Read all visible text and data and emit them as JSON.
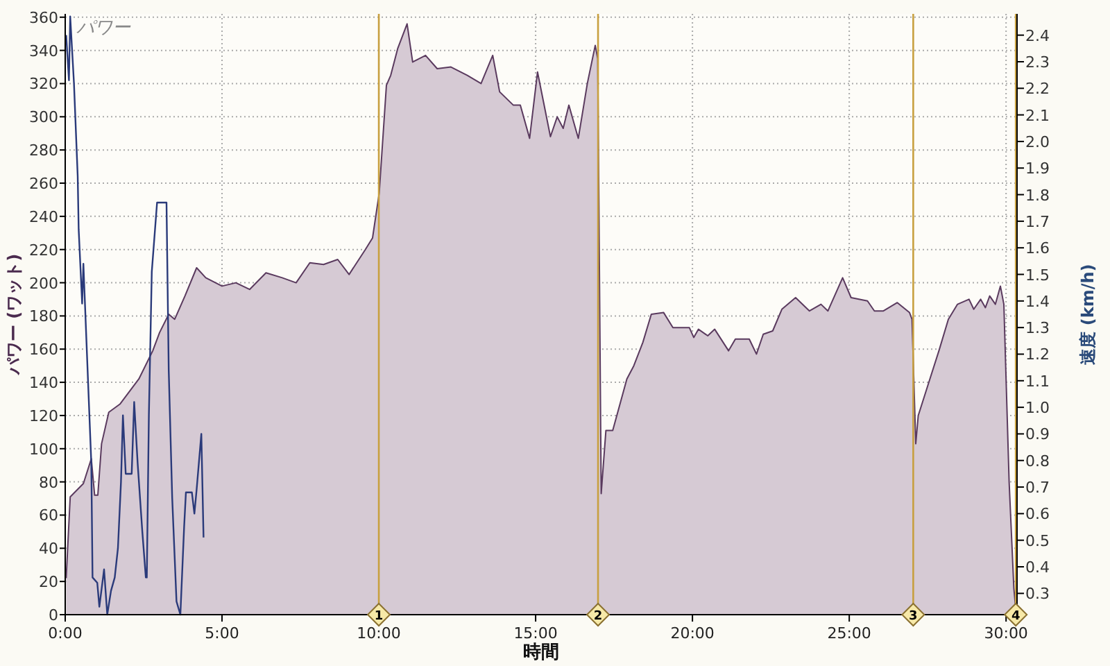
{
  "chart_data": {
    "type": "area",
    "title": "パワー",
    "xlabel": "時間",
    "ylabel": "パワー (ワット)",
    "y2label": "速度 (km/h)",
    "xlim": [
      0,
      30.35
    ],
    "xticks": [
      {
        "value": 0,
        "label": "0:00"
      },
      {
        "value": 5,
        "label": "5:00"
      },
      {
        "value": 10,
        "label": "10:00"
      },
      {
        "value": 15,
        "label": "15:00"
      },
      {
        "value": 20,
        "label": "20:00"
      },
      {
        "value": 25,
        "label": "25:00"
      },
      {
        "value": 30,
        "label": "30:00"
      }
    ],
    "ylim": [
      0,
      362
    ],
    "yticks": [
      0,
      20,
      40,
      60,
      80,
      100,
      120,
      140,
      160,
      180,
      200,
      220,
      240,
      260,
      280,
      300,
      320,
      340,
      360
    ],
    "y2lim": [
      0.22,
      2.48
    ],
    "y2ticks": [
      0.3,
      0.4,
      0.5,
      0.6,
      0.7,
      0.8,
      0.9,
      {
        "value": 1,
        "label": "1.0"
      },
      1.1,
      1.2,
      1.3,
      1.4,
      1.5,
      1.6,
      1.7,
      1.8,
      1.9,
      {
        "value": 2,
        "label": "2.0"
      },
      2.1,
      2.2,
      2.3,
      2.4
    ],
    "grid": true,
    "series": [
      {
        "color": "#5a3a5e",
        "x": [
          0.03,
          0.16,
          0.58,
          0.83,
          0.94,
          1.04,
          1.16,
          1.39,
          1.75,
          2.35,
          2.79,
          3.01,
          3.3,
          3.49,
          3.82,
          4.19,
          4.48,
          5.0,
          5.44,
          5.88,
          6.4,
          6.92,
          7.36,
          7.8,
          8.24,
          8.69,
          9.05,
          9.57,
          9.8,
          10.01,
          10.24,
          10.38,
          10.6,
          10.9,
          11.08,
          11.49,
          11.86,
          12.3,
          12.82,
          13.26,
          13.63,
          13.85,
          14.29,
          14.51,
          14.81,
          15.06,
          15.25,
          15.47,
          15.69,
          15.88,
          16.06,
          16.36,
          16.65,
          16.9,
          16.98,
          17.09,
          17.24,
          17.46,
          17.91,
          18.13,
          18.42,
          18.69,
          19.08,
          19.38,
          19.9,
          20.04,
          20.19,
          20.49,
          20.71,
          21.15,
          21.37,
          21.81,
          22.04,
          22.26,
          22.56,
          22.85,
          23.29,
          23.73,
          24.1,
          24.32,
          24.79,
          25.06,
          25.58,
          25.8,
          26.09,
          26.53,
          26.92,
          27.0,
          27.12,
          27.2,
          27.57,
          27.86,
          28.16,
          28.45,
          28.82,
          28.97,
          29.19,
          29.34,
          29.48,
          29.66,
          29.82,
          29.93,
          30.1,
          30.25,
          30.3
        ],
        "values": [
          22,
          71,
          79,
          94,
          72,
          72,
          103,
          122,
          127,
          142,
          159,
          170,
          181,
          178,
          192,
          209,
          203,
          198,
          200,
          196,
          206,
          203,
          200,
          212,
          211,
          214,
          205,
          220,
          227,
          254,
          319,
          325,
          341,
          356,
          333,
          337,
          329,
          330,
          325,
          320,
          337,
          315,
          307,
          307,
          287,
          327,
          309,
          288,
          300,
          293,
          307,
          287,
          320,
          343,
          335,
          73,
          111,
          111,
          142,
          150,
          164,
          181,
          182,
          173,
          173,
          167,
          172,
          168,
          172,
          159,
          166,
          166,
          157,
          169,
          171,
          184,
          191,
          183,
          187,
          183,
          203,
          191,
          189,
          183,
          183,
          188,
          182,
          178,
          103,
          120,
          142,
          159,
          178,
          187,
          190,
          184,
          190,
          185,
          192,
          187,
          198,
          187,
          80,
          16,
          5
        ]
      },
      {
        "type": "line",
        "axis": "y2",
        "color": "#2a3a7a",
        "x": [
          0.03,
          0.12,
          0.16,
          0.28,
          0.4,
          0.43,
          0.54,
          0.58,
          0.69,
          0.83,
          0.87,
          1.02,
          1.09,
          1.24,
          1.34,
          1.46,
          1.58,
          1.68,
          1.78,
          1.84,
          1.93,
          2.12,
          2.2,
          2.31,
          2.46,
          2.57,
          2.6,
          2.67,
          2.76,
          2.93,
          3.23,
          3.3,
          3.41,
          3.55,
          3.67,
          3.79,
          3.85,
          4.04,
          4.12,
          4.19,
          4.34,
          4.41
        ],
        "values": [
          2.4,
          2.23,
          2.47,
          2.22,
          1.87,
          1.67,
          1.39,
          1.54,
          1.21,
          0.79,
          0.36,
          0.34,
          0.25,
          0.39,
          0.22,
          0.31,
          0.36,
          0.47,
          0.72,
          0.97,
          0.75,
          0.75,
          1.02,
          0.79,
          0.53,
          0.36,
          0.36,
          0.97,
          1.51,
          1.77,
          1.77,
          1.14,
          0.66,
          0.27,
          0.22,
          0.55,
          0.68,
          0.68,
          0.6,
          0.69,
          0.9,
          0.51
        ]
      }
    ],
    "ref_lines": [
      {
        "axis": "x",
        "value": 10.0,
        "color": "#c8a040"
      },
      {
        "axis": "x",
        "value": 16.99,
        "color": "#c8a040"
      },
      {
        "axis": "x",
        "value": 27.04,
        "color": "#c8a040"
      },
      {
        "axis": "x",
        "value": 30.31,
        "color": "#c8a040"
      }
    ],
    "annotations": [
      {
        "text": "1",
        "x": 10.0,
        "y": 0
      },
      {
        "text": "2",
        "x": 16.99,
        "y": 0
      },
      {
        "text": "3",
        "x": 27.04,
        "y": 0
      },
      {
        "text": "4",
        "x": 30.31,
        "y": 0
      }
    ]
  }
}
